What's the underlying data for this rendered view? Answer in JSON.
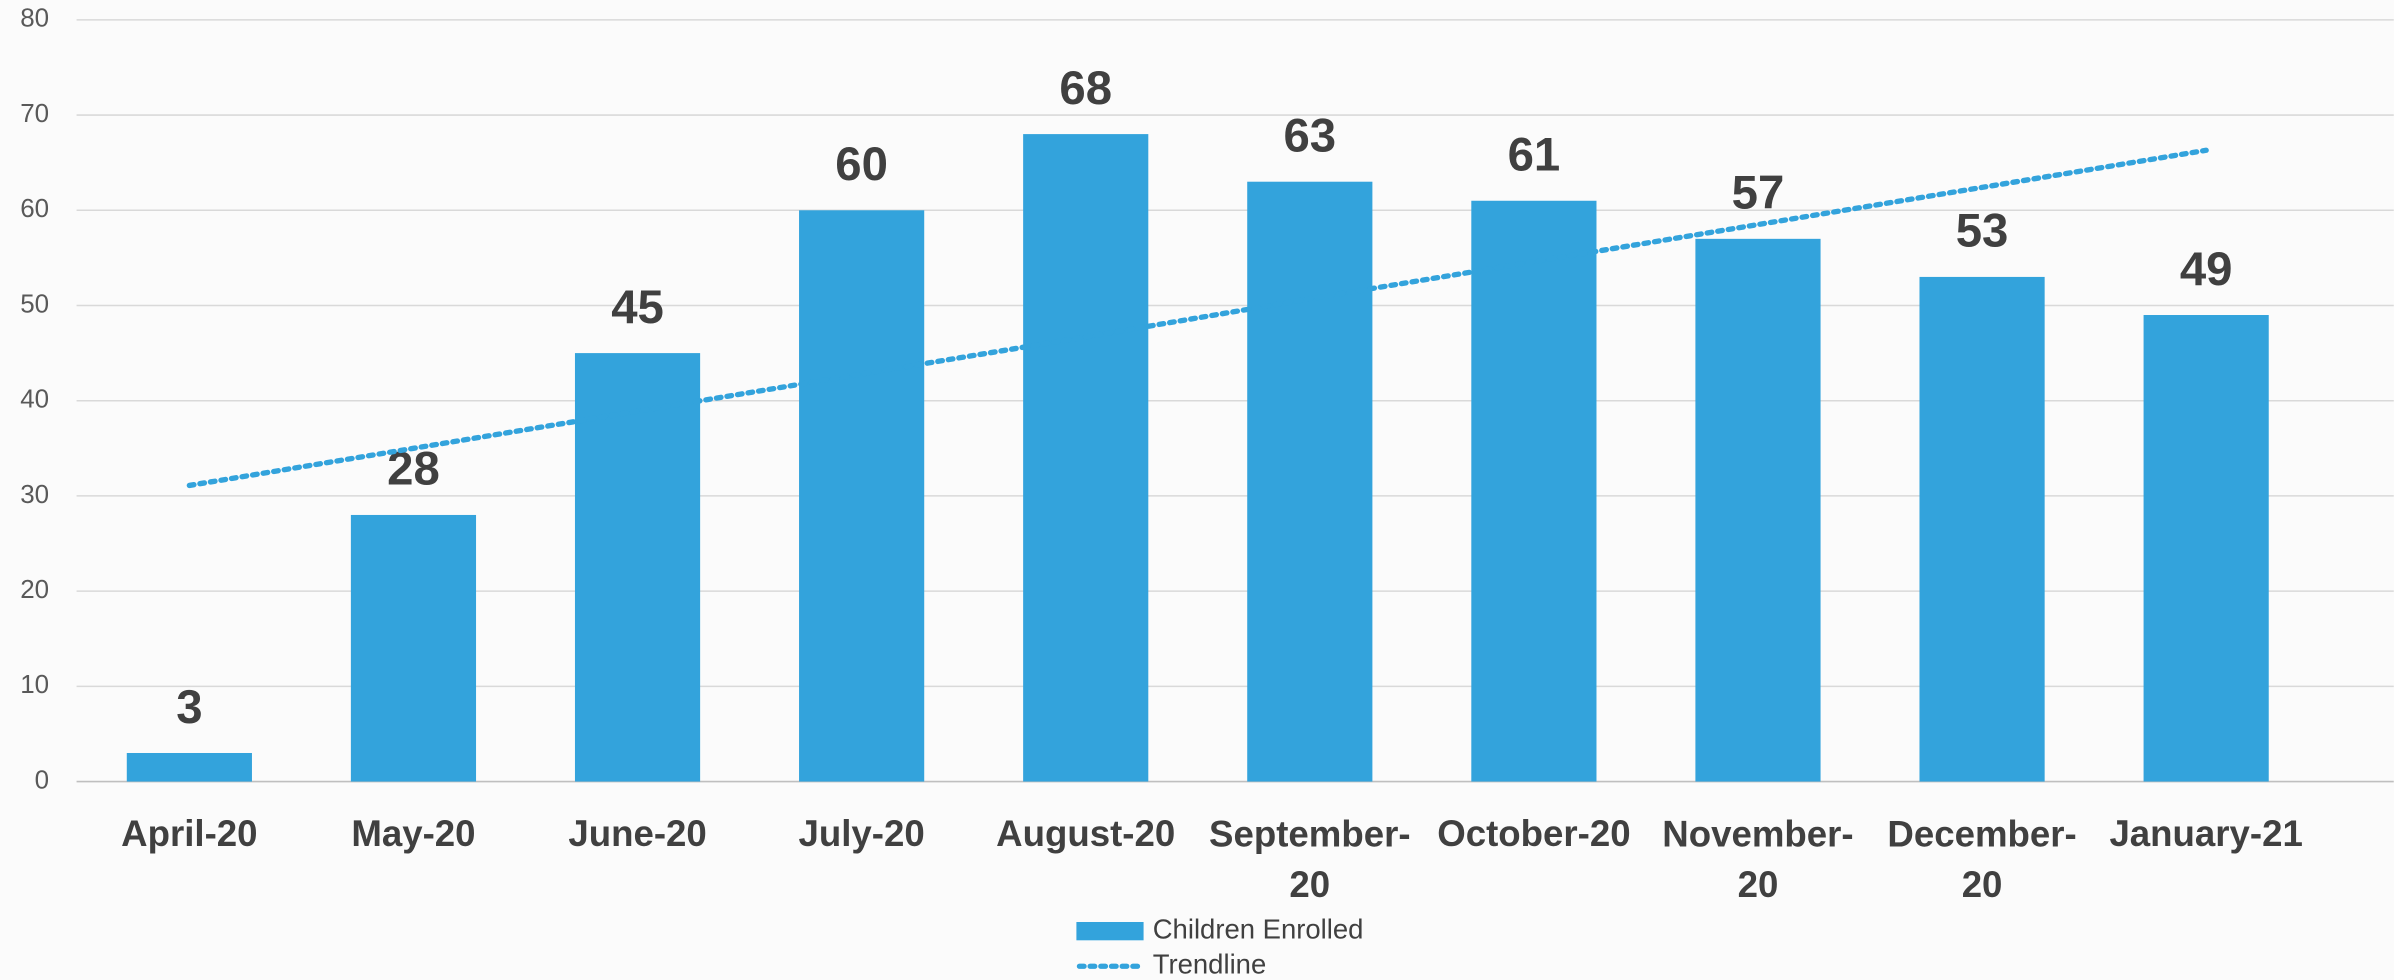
{
  "chart_data": {
    "type": "bar",
    "categories": [
      "April-20",
      "May-20",
      "June-20",
      "July-20",
      "August-20",
      "September-20",
      "October-20",
      "November-20",
      "December-20",
      "January-21"
    ],
    "series": [
      {
        "name": "Children Enrolled",
        "color": "#33a3dc",
        "values": [
          3,
          28,
          45,
          60,
          68,
          63,
          61,
          57,
          53,
          49
        ]
      },
      {
        "name": "Trendline",
        "color": "#33a3dc",
        "type": "line",
        "style": "dotted",
        "values": [
          31.1,
          35,
          38.9,
          42.8,
          46.7,
          50.7,
          54.6,
          58.5,
          62.4,
          66.3
        ]
      }
    ],
    "ylim": [
      0,
      80
    ],
    "yticks": [
      0,
      10,
      20,
      30,
      40,
      50,
      60,
      70,
      80
    ],
    "grid": true,
    "legend": "bottom"
  }
}
